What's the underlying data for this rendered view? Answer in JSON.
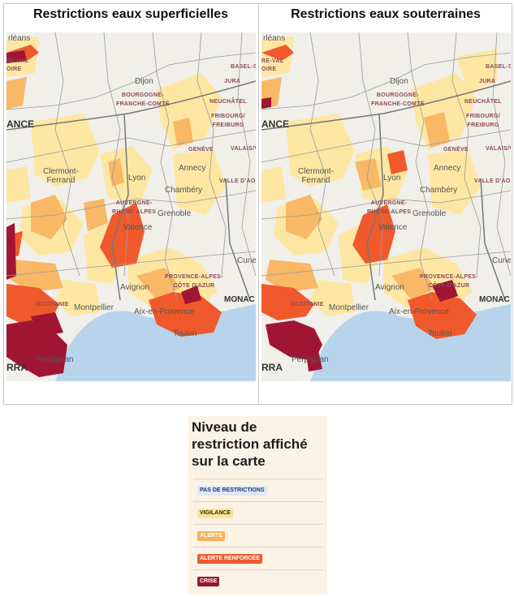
{
  "panels": {
    "left": {
      "title": "Restrictions eaux superficielles"
    },
    "right": {
      "title": "Restrictions eaux souterraines"
    }
  },
  "map_labels": {
    "orleans": "rléans",
    "centre_val": "RE-VAL",
    "loire": "OIRE",
    "dijon": "Dijon",
    "bfc": "BOURGOGNE-\nFRANCHE-COMTÉ",
    "basel": "BASEL-S",
    "jura": "JURA",
    "neuchatel": "NEUCHÂTEL",
    "fribourg": "FRIBOURG/\nFREIBURG",
    "france": "ANCE",
    "geneve": "GENÈVE",
    "valais": "VALAIS/V",
    "clermont": "Clermont-\nFerrand",
    "annecy": "Annecy",
    "lyon": "Lyon",
    "valle_aosta": "VALLE D'AOS",
    "chambery": "Chambéry",
    "ara": "AUVERGNE-\nRHÔNE-ALPES",
    "grenoble": "Grenoble",
    "valence": "Valence",
    "cuneo": "Cune",
    "paca": "PROVENCE-ALPES-\nCÔTE D'AZUR",
    "avignon": "Avignon",
    "monaco": "MONAC",
    "occitanie": "OCCITANIE",
    "montpellier": "Montpellier",
    "aix": "Aix-en-Provence",
    "toulon": "Toulon",
    "perpignan": "Perpignan",
    "rra": "RRA"
  },
  "legend": {
    "title": "Niveau de restriction affiché sur la carte",
    "levels": [
      {
        "label": "PAS DE RESTRICTIONS",
        "color": "#dfe8f5",
        "text_color": "#1f3a70"
      },
      {
        "label": "VIGILANCE",
        "color": "#fbe49a",
        "text_color": "#3a2a00"
      },
      {
        "label": "ALERTE",
        "color": "#f7b25a",
        "text_color": "#ffffff"
      },
      {
        "label": "ALERTE RENFORCÉE",
        "color": "#f05a2a",
        "text_color": "#ffffff"
      },
      {
        "label": "CRISE",
        "color": "#9c1530",
        "text_color": "#ffffff"
      }
    ]
  },
  "colors": {
    "no_restriction": "#f1efe9",
    "vigilance": "#fde7a3",
    "alerte": "#f8b866",
    "alerte_renforcee": "#f0592b",
    "crise": "#a01632",
    "sea": "#b7d4ec",
    "border": "#9a9a9a"
  }
}
